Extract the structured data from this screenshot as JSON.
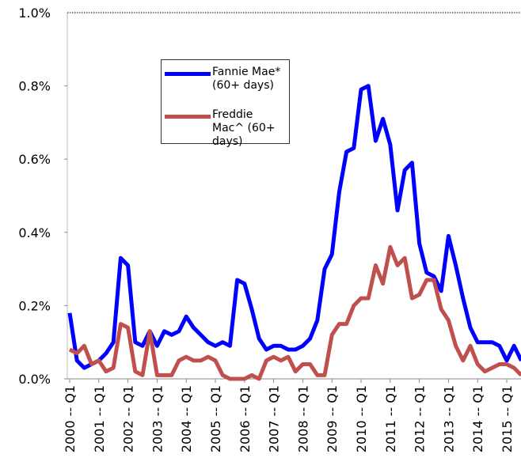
{
  "chart_data": {
    "type": "line",
    "categories": [
      "2000 -- Q1",
      null,
      null,
      null,
      "2001 -- Q1",
      null,
      null,
      null,
      "2002 -- Q1",
      null,
      null,
      null,
      "2003 -- Q1",
      null,
      null,
      null,
      "2004 -- Q1",
      null,
      null,
      null,
      "2005 -- Q1",
      null,
      null,
      null,
      "2006 -- Q1",
      null,
      null,
      null,
      "2007 -- Q1",
      null,
      null,
      null,
      "2008 -- Q1",
      null,
      null,
      null,
      "2009 -- Q1",
      null,
      null,
      null,
      "2010 -- Q1",
      null,
      null,
      null,
      "2011 -- Q1",
      null,
      null,
      null,
      "2012 -- Q1",
      null,
      null,
      null,
      "2013 -- Q1",
      null,
      null,
      null,
      "2014 -- Q1",
      null,
      null,
      null,
      "2015 -- Q1",
      null,
      null
    ],
    "series": [
      {
        "name": "Fannie Mae* (60+ days)",
        "color": "#0000ff",
        "values": [
          0.18,
          0.05,
          0.03,
          0.04,
          0.05,
          0.07,
          0.1,
          0.33,
          0.31,
          0.1,
          0.09,
          0.13,
          0.09,
          0.13,
          0.12,
          0.13,
          0.17,
          0.14,
          0.12,
          0.1,
          0.09,
          0.1,
          0.09,
          0.27,
          0.26,
          0.19,
          0.11,
          0.08,
          0.09,
          0.09,
          0.08,
          0.08,
          0.09,
          0.11,
          0.16,
          0.3,
          0.34,
          0.51,
          0.62,
          0.63,
          0.79,
          0.8,
          0.65,
          0.71,
          0.64,
          0.46,
          0.57,
          0.59,
          0.37,
          0.29,
          0.28,
          0.24,
          0.39,
          0.31,
          0.22,
          0.14,
          0.1,
          0.1,
          0.1,
          0.09,
          0.05,
          0.09,
          0.05
        ]
      },
      {
        "name": "Freddie Mac^ (60+ days)",
        "color": "#c0504d",
        "values": [
          0.08,
          0.07,
          0.09,
          0.04,
          0.05,
          0.02,
          0.03,
          0.15,
          0.14,
          0.02,
          0.01,
          0.13,
          0.01,
          0.01,
          0.01,
          0.05,
          0.06,
          0.05,
          0.05,
          0.06,
          0.05,
          0.01,
          0.0,
          0.0,
          0.0,
          0.01,
          0.0,
          0.05,
          0.06,
          0.05,
          0.06,
          0.02,
          0.04,
          0.04,
          0.01,
          0.01,
          0.12,
          0.15,
          0.15,
          0.2,
          0.22,
          0.22,
          0.31,
          0.26,
          0.36,
          0.31,
          0.33,
          0.22,
          0.23,
          0.27,
          0.27,
          0.19,
          0.16,
          0.09,
          0.05,
          0.09,
          0.04,
          0.02,
          0.03,
          0.04,
          0.04,
          0.03,
          0.01
        ]
      }
    ],
    "ylim": [
      0,
      1
    ],
    "yticks": [
      {
        "value": 0,
        "label": "0.0%"
      },
      {
        "value": 0.2,
        "label": "0.2%"
      },
      {
        "value": 0.4,
        "label": "0.4%"
      },
      {
        "value": 0.6,
        "label": "0.6%"
      },
      {
        "value": 0.8,
        "label": "0.8%"
      },
      {
        "value": 1,
        "label": "1.0%"
      }
    ]
  }
}
